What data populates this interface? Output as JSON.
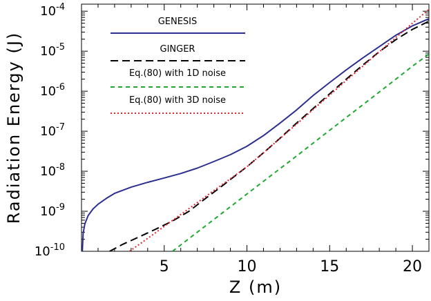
{
  "chart_data": {
    "type": "line",
    "xlabel": "Z (m)",
    "ylabel": "Radiation Energy (J)",
    "xlim": [
      0,
      21
    ],
    "ylim": [
      1e-10,
      0.00015
    ],
    "yscale": "log",
    "legend_position": "top-left",
    "x_ticks": [
      "5",
      "10",
      "15",
      "20"
    ],
    "y_ticks": [
      "10^-10",
      "10^-9",
      "10^-8",
      "10^-7",
      "10^-6",
      "10^-5",
      "10^-4"
    ],
    "series": [
      {
        "name": "GENESIS",
        "legend_label": "GENESIS",
        "color": "#2a2f8f",
        "style": "solid",
        "x": [
          0.05,
          0.1,
          0.2,
          0.4,
          0.7,
          1.0,
          1.5,
          2.0,
          3.0,
          4.0,
          5.0,
          6.0,
          7.0,
          8.0,
          9.0,
          10.0,
          11.0,
          12.0,
          13.0,
          14.0,
          15.0,
          16.0,
          17.0,
          18.0,
          19.0,
          20.0,
          21.0
        ],
        "y": [
          1e-10,
          2.8e-10,
          4.8e-10,
          7.8e-10,
          1.15e-09,
          1.5e-09,
          2.1e-09,
          2.8e-09,
          4e-09,
          5.3e-09,
          6.8e-09,
          8.8e-09,
          1.2e-08,
          1.75e-08,
          2.6e-08,
          4.2e-08,
          7.8e-08,
          1.6e-07,
          3.4e-07,
          7.8e-07,
          1.65e-06,
          3.4e-06,
          6.8e-06,
          1.3e-05,
          2.5e-05,
          4.3e-05,
          6.5e-05
        ]
      },
      {
        "name": "GINGER",
        "legend_label": "GINGER",
        "color": "#000000",
        "style": "long-dash",
        "x": [
          1.7,
          2.5,
          3.5,
          4.5,
          5.5,
          6.5,
          7.5,
          8.5,
          10.0,
          11.0,
          12.0,
          13.0,
          14.0,
          15.0,
          16.0,
          17.0,
          18.0,
          19.0,
          20.0,
          21.0
        ],
        "y": [
          1e-10,
          1.5e-10,
          2.3e-10,
          3.6e-10,
          5.7e-10,
          1e-09,
          2.1e-09,
          4.3e-09,
          1.3e-08,
          2.9e-08,
          6.7e-08,
          1.6e-07,
          3.7e-07,
          8.6e-07,
          2e-06,
          4.5e-06,
          9.7e-06,
          1.95e-05,
          3.5e-05,
          5.6e-05
        ]
      },
      {
        "name": "Eq.(80) with 1D noise",
        "legend_label": "Eq.(80) with 1D noise",
        "color": "#1fa82f",
        "style": "short-dash",
        "x": [
          5.5,
          7.0,
          8.5,
          10.0,
          11.5,
          13.0,
          14.5,
          16.0,
          17.5,
          19.0,
          20.0,
          21.0
        ],
        "y": [
          1e-10,
          3e-10,
          9e-10,
          2.7e-09,
          8.1e-09,
          2.4e-08,
          7.3e-08,
          2.2e-07,
          6.6e-07,
          2e-06,
          4.2e-06,
          8.5e-06
        ]
      },
      {
        "name": "Eq.(80) with 3D noise",
        "legend_label": "Eq.(80) with 3D noise",
        "color": "#e8222a",
        "style": "dotted",
        "x": [
          2.9,
          4.0,
          5.0,
          6.0,
          7.0,
          8.0,
          9.0,
          10.0,
          11.0,
          12.0,
          13.0,
          14.0,
          15.0,
          16.0,
          17.0,
          18.0,
          19.0,
          20.0,
          21.0
        ],
        "y": [
          1e-10,
          2.1e-10,
          4.2e-10,
          8.3e-10,
          1.65e-09,
          3.3e-09,
          6.5e-09,
          1.3e-08,
          2.9e-08,
          6.6e-08,
          1.5e-07,
          3.5e-07,
          8e-07,
          1.85e-06,
          4.2e-06,
          9.6e-06,
          2.2e-05,
          5e-05,
          0.00011
        ]
      }
    ]
  }
}
